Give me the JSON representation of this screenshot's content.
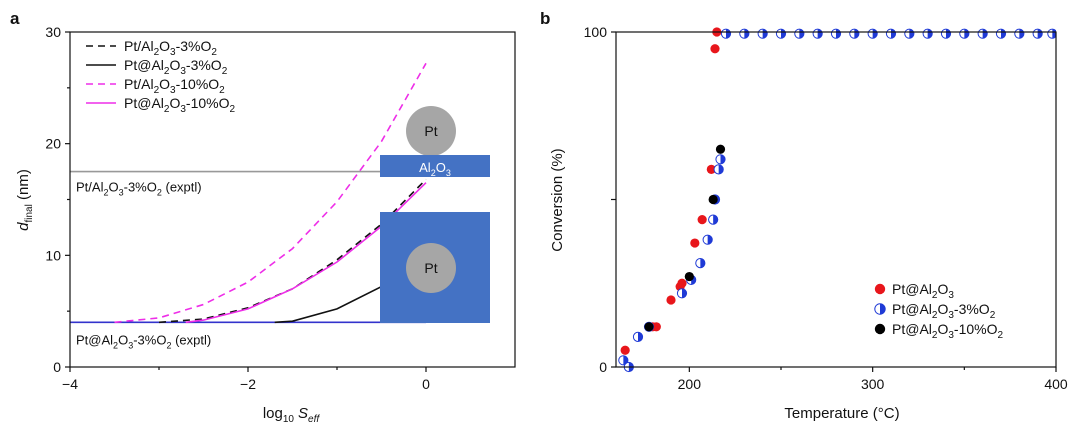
{
  "chart_data": [
    {
      "panel_label": "a",
      "type": "line",
      "xlabel": "log10 Seff",
      "xlabel_base": "log",
      "xlabel_sub": "10",
      "xlabel_var": "S",
      "xlabel_var_sub": "eff",
      "ylabel": "dfinal (nm)",
      "ylabel_var": "d",
      "ylabel_var_sub": "final",
      "ylabel_unit": " (nm)",
      "xlim": [
        -4,
        1
      ],
      "ylim": [
        0,
        30
      ],
      "xticks": [
        -4,
        -2,
        0
      ],
      "yticks": [
        0,
        10,
        20,
        30
      ],
      "xtick_labels": [
        "−4",
        "−2",
        "0"
      ],
      "ytick_labels": [
        "0",
        "10",
        "20",
        "30"
      ],
      "legend_position": "top-left",
      "series": [
        {
          "name": "Pt/Al2O3-3%O2",
          "label_parts": [
            [
              "Pt/Al",
              ""
            ],
            [
              "2",
              "sub"
            ],
            [
              "O",
              ""
            ],
            [
              "3",
              "sub"
            ],
            [
              "-3%O",
              ""
            ],
            [
              "2",
              "sub"
            ]
          ],
          "color": "#111111",
          "dash": "dashed",
          "x": [
            -3.0,
            -2.5,
            -2.0,
            -1.5,
            -1.0,
            -0.5,
            0.0
          ],
          "y": [
            4.0,
            4.3,
            5.3,
            7.0,
            9.6,
            12.8,
            16.8
          ]
        },
        {
          "name": "Pt@Al2O3-3%O2",
          "label_parts": [
            [
              "Pt@Al",
              ""
            ],
            [
              "2",
              "sub"
            ],
            [
              "O",
              ""
            ],
            [
              "3",
              "sub"
            ],
            [
              "-3%O",
              ""
            ],
            [
              "2",
              "sub"
            ]
          ],
          "color": "#111111",
          "dash": "solid",
          "x": [
            -1.7,
            -1.5,
            -1.0,
            -0.5,
            0.0
          ],
          "y": [
            4.0,
            4.1,
            5.2,
            7.2,
            10.0
          ]
        },
        {
          "name": "Pt/Al2O3-10%O2",
          "label_parts": [
            [
              "Pt/Al",
              ""
            ],
            [
              "2",
              "sub"
            ],
            [
              "O",
              ""
            ],
            [
              "3",
              "sub"
            ],
            [
              "-10%O",
              ""
            ],
            [
              "2",
              "sub"
            ]
          ],
          "color": "#ee2ee8",
          "dash": "dashed",
          "x": [
            -3.5,
            -3.0,
            -2.5,
            -2.0,
            -1.5,
            -1.0,
            -0.5,
            0.0
          ],
          "y": [
            4.0,
            4.4,
            5.6,
            7.6,
            10.6,
            14.8,
            20.2,
            27.2
          ]
        },
        {
          "name": "Pt@Al2O3-10%O2",
          "label_parts": [
            [
              "Pt@Al",
              ""
            ],
            [
              "2",
              "sub"
            ],
            [
              "O",
              ""
            ],
            [
              "3",
              "sub"
            ],
            [
              "-10%O",
              ""
            ],
            [
              "2",
              "sub"
            ]
          ],
          "color": "#ee2ee8",
          "dash": "solid",
          "x": [
            -2.7,
            -2.5,
            -2.0,
            -1.5,
            -1.0,
            -0.5,
            0.0
          ],
          "y": [
            4.0,
            4.2,
            5.2,
            7.0,
            9.4,
            12.6,
            16.5
          ]
        }
      ],
      "reference_lines": [
        {
          "name": "Pt/Al2O3-3%O2 (exptl)",
          "label_parts": [
            [
              "Pt/Al",
              ""
            ],
            [
              "2",
              "sub"
            ],
            [
              "O",
              ""
            ],
            [
              "3",
              "sub"
            ],
            [
              "-3%O",
              ""
            ],
            [
              "2",
              "sub"
            ],
            [
              " (exptl)",
              ""
            ]
          ],
          "y": 17.5,
          "color": "#999999"
        },
        {
          "name": "Pt@Al2O3-3%O2 (exptl)",
          "label_parts": [
            [
              "Pt@Al",
              ""
            ],
            [
              "2",
              "sub"
            ],
            [
              "O",
              ""
            ],
            [
              "3",
              "sub"
            ],
            [
              "-3%O",
              ""
            ],
            [
              "2",
              "sub"
            ],
            [
              " (exptl)",
              ""
            ]
          ],
          "y": 4.0,
          "color": "#3333cc"
        }
      ],
      "schematic": {
        "top_particle_label": "Pt",
        "support_label_parts": [
          [
            "Al",
            ""
          ],
          [
            "2",
            "sub"
          ],
          [
            "O",
            ""
          ],
          [
            "3",
            "sub"
          ]
        ],
        "bottom_particle_label": "Pt",
        "particle_color": "#a6a6a6",
        "support_color": "#4472c4"
      }
    },
    {
      "panel_label": "b",
      "type": "scatter",
      "xlabel": "Temperature (°C)",
      "ylabel": "Conversion (%)",
      "xlim": [
        160,
        400
      ],
      "ylim": [
        0,
        100
      ],
      "xticks": [
        200,
        300,
        400
      ],
      "yticks": [
        0,
        50,
        100
      ],
      "xtick_labels": [
        "200",
        "300",
        "400"
      ],
      "ytick_labels": [
        "0",
        "",
        "100"
      ],
      "legend_position": "bottom-right",
      "series": [
        {
          "name": "Pt@Al2O3",
          "label_parts": [
            [
              "Pt@Al",
              ""
            ],
            [
              "2",
              "sub"
            ],
            [
              "O",
              ""
            ],
            [
              "3",
              "sub"
            ]
          ],
          "color": "#e8161b",
          "marker": "filled",
          "x": [
            165,
            180,
            182,
            190,
            195,
            196,
            203,
            207,
            212,
            214,
            215
          ],
          "y": [
            5,
            12,
            12,
            20,
            24,
            25,
            37,
            44,
            59,
            95,
            100
          ]
        },
        {
          "name": "Pt@Al2O3-3%O2",
          "label_parts": [
            [
              "Pt@Al",
              ""
            ],
            [
              "2",
              "sub"
            ],
            [
              "O",
              ""
            ],
            [
              "3",
              "sub"
            ],
            [
              "-3%O",
              ""
            ],
            [
              "2",
              "sub"
            ]
          ],
          "color": "#1f3ad6",
          "marker": "half",
          "x": [
            164,
            167,
            172,
            178,
            196,
            201,
            206,
            210,
            213,
            214,
            216,
            217,
            220,
            230,
            240,
            250,
            260,
            270,
            280,
            290,
            300,
            310,
            320,
            330,
            340,
            350,
            360,
            370,
            380,
            390,
            398
          ],
          "y": [
            2,
            0,
            9,
            12,
            22,
            26,
            31,
            38,
            44,
            50,
            59,
            62,
            99.5,
            99.5,
            99.5,
            99.5,
            99.5,
            99.5,
            99.5,
            99.5,
            99.5,
            99.5,
            99.5,
            99.5,
            99.5,
            99.5,
            99.5,
            99.5,
            99.5,
            99.5,
            99.5
          ]
        },
        {
          "name": "Pt@Al2O3-10%O2",
          "label_parts": [
            [
              "Pt@Al",
              ""
            ],
            [
              "2",
              "sub"
            ],
            [
              "O",
              ""
            ],
            [
              "3",
              "sub"
            ],
            [
              "-10%O",
              ""
            ],
            [
              "2",
              "sub"
            ]
          ],
          "color": "#000000",
          "marker": "filled",
          "x": [
            178,
            200,
            213,
            217
          ],
          "y": [
            12,
            27,
            50,
            65
          ]
        }
      ]
    }
  ]
}
